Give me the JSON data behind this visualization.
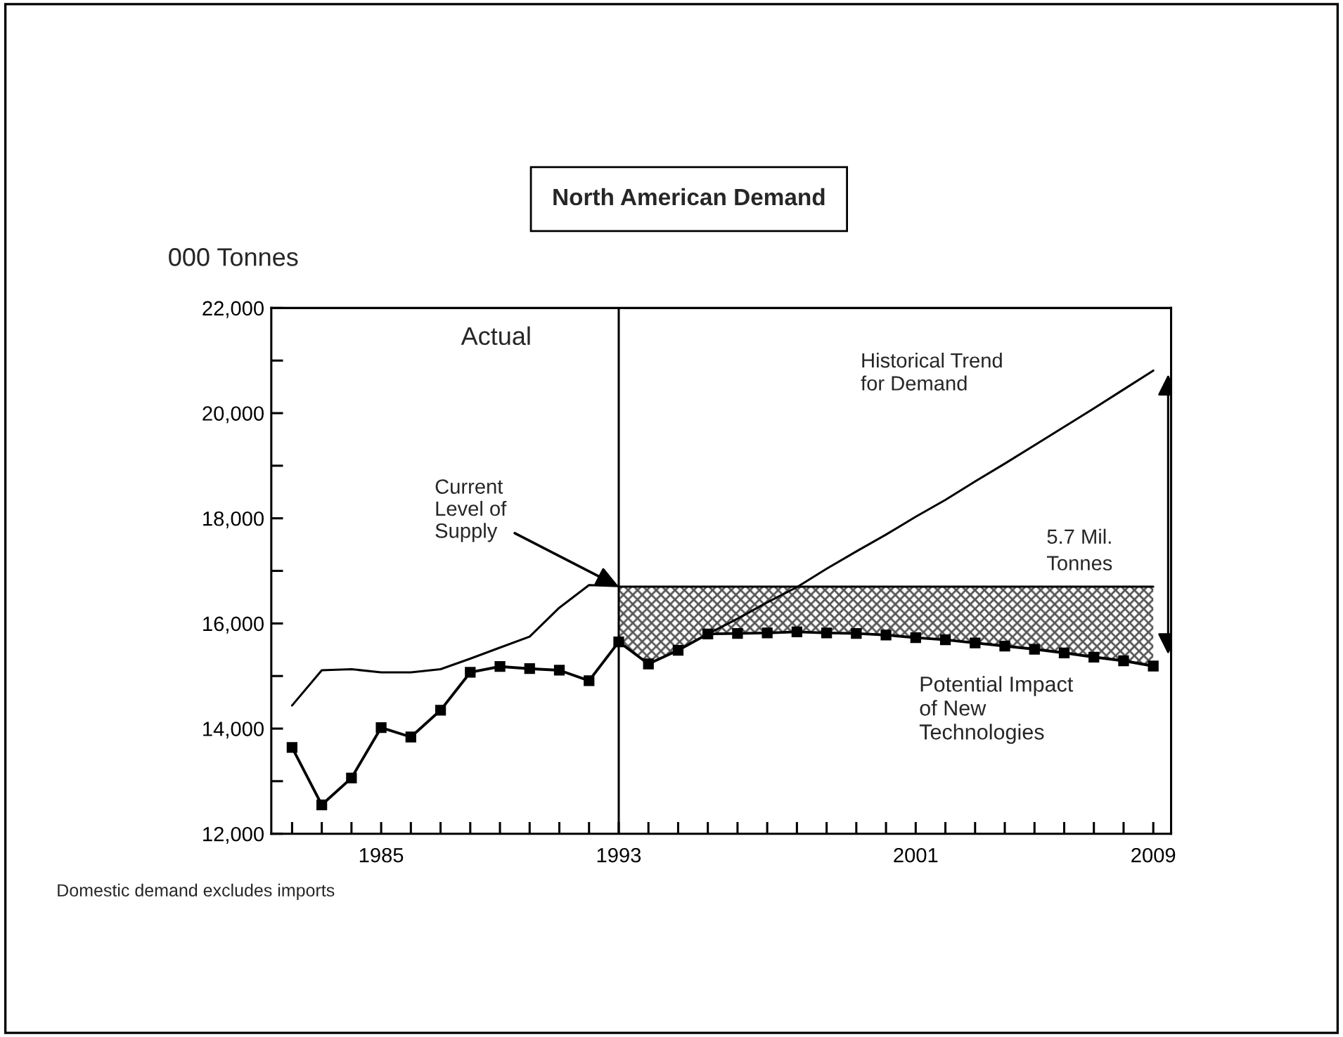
{
  "chart_data": {
    "type": "line",
    "title": "North American Demand",
    "ylabel": "000 Tonnes",
    "categories": [
      null,
      null,
      null,
      "1985",
      null,
      null,
      null,
      null,
      null,
      null,
      null,
      "1993",
      null,
      null,
      null,
      null,
      null,
      null,
      null,
      null,
      null,
      "2001",
      null,
      null,
      null,
      null,
      null,
      null,
      null,
      "2009"
    ],
    "ylim": [
      12000,
      22000
    ],
    "yticks": [
      {
        "value": 12000,
        "label": "12,000"
      },
      {
        "value": 13000,
        "label": null
      },
      {
        "value": 14000,
        "label": "14,000"
      },
      {
        "value": 15000,
        "label": null
      },
      {
        "value": 16000,
        "label": "16,000"
      },
      {
        "value": 17000,
        "label": null
      },
      {
        "value": 18000,
        "label": "18,000"
      },
      {
        "value": 19000,
        "label": null
      },
      {
        "value": 20000,
        "label": "20,000"
      },
      {
        "value": 21000,
        "label": null
      },
      {
        "value": 22000,
        "label": "22,000"
      }
    ],
    "grid": false,
    "legend": false,
    "series": [
      {
        "color": "#000000",
        "marker": "none",
        "values": [
          14440,
          15110,
          15130,
          15070,
          15070,
          15130,
          15330,
          15540,
          15750,
          16300,
          16730,
          16710,
          null,
          null,
          null,
          null,
          null,
          null,
          null,
          null,
          null,
          null,
          null,
          null,
          null,
          null,
          null,
          null,
          null,
          null
        ]
      },
      {
        "color": "#000000",
        "marker": "square",
        "values": [
          13640,
          12550,
          13060,
          14020,
          13840,
          14350,
          15070,
          15180,
          15140,
          15110,
          14910,
          15650,
          15230,
          15490,
          15800,
          15810,
          15820,
          15840,
          15820,
          15810,
          15780,
          15730,
          15690,
          15630,
          15570,
          15510,
          15440,
          15360,
          15290,
          15190
        ]
      },
      {
        "color": "#000000",
        "marker": "none",
        "values": [
          null,
          null,
          null,
          null,
          null,
          null,
          null,
          null,
          null,
          null,
          null,
          null,
          null,
          null,
          15800,
          16090,
          16400,
          16690,
          17040,
          17370,
          17690,
          18030,
          18350,
          18700,
          19040,
          19390,
          19740,
          20090,
          20450,
          20810
        ]
      },
      {
        "type": "area",
        "color": "#555555",
        "values": [
          null,
          null,
          null,
          null,
          null,
          null,
          null,
          null,
          null,
          null,
          null,
          16700,
          16700,
          16700,
          16700,
          16700,
          16700,
          16700,
          16700,
          16700,
          16700,
          16700,
          16700,
          16700,
          16700,
          16700,
          16700,
          16700,
          16700,
          16700
        ]
      }
    ],
    "ref_lines": [
      {
        "axis": "x",
        "value": "1993",
        "color": "#000000"
      }
    ],
    "annotations": [
      "Actual",
      {
        "text": "Current\nLevel of\nSupply",
        "x": "1993",
        "y": 16700
      },
      "Historical Trend\nfor Demand",
      "5.7 Mil.\nTonnes",
      "Potential Impact\nof New\nTechnologies",
      "Domestic demand excludes imports"
    ]
  }
}
